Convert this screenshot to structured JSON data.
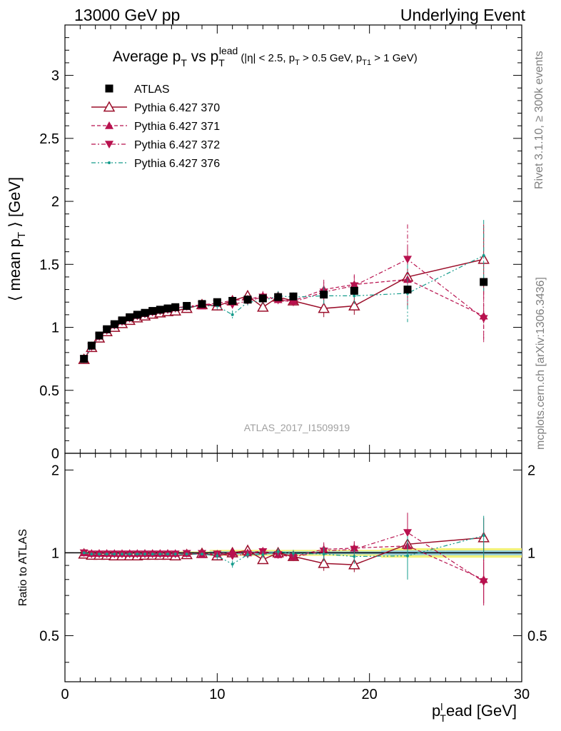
{
  "header": {
    "left": "13000 GeV pp",
    "right": "Underlying Event"
  },
  "side_labels": {
    "rivet": "Rivet 3.1.10, ≥ 300k events",
    "mcplots": "mcplots.cern.ch [arXiv:1306.3436]"
  },
  "analysis_id": "ATLAS_2017_I1509919",
  "plot_title": {
    "main": "Average p_T vs p_T^lead",
    "cuts": "(|η| < 2.5, p_T > 0.5 GeV, p_T1 > 1 GeV)"
  },
  "colors": {
    "atlas": "#000000",
    "p370": "#9b0e2a",
    "p371": "#b8114e",
    "p372": "#b8114e",
    "p376": "#169c8c",
    "band_inner": "#86c8e8",
    "band_outer": "#f2f27a"
  },
  "chart_data": [
    {
      "type": "scatter",
      "panel": "main",
      "ylabel": "⟨ mean p_T ⟩ [GeV]",
      "xlim": [
        0,
        30
      ],
      "ylim": [
        0,
        3.4
      ],
      "yticks": [
        0,
        0.5,
        1,
        1.5,
        2,
        2.5,
        3
      ],
      "x": [
        1.25,
        1.75,
        2.25,
        2.75,
        3.25,
        3.75,
        4.25,
        4.75,
        5.25,
        5.75,
        6.25,
        6.75,
        7.25,
        8,
        9,
        10,
        11,
        12,
        13,
        14,
        15,
        17,
        19,
        22.5,
        27.5
      ],
      "series": [
        {
          "name": "ATLAS",
          "marker": "square",
          "values": [
            0.75,
            0.855,
            0.935,
            0.985,
            1.025,
            1.055,
            1.08,
            1.1,
            1.115,
            1.13,
            1.14,
            1.15,
            1.16,
            1.17,
            1.185,
            1.2,
            1.21,
            1.22,
            1.23,
            1.24,
            1.245,
            1.26,
            1.29,
            1.3,
            1.36
          ]
        },
        {
          "name": "Pythia 6.427 370",
          "marker": "triangle-up-open",
          "line": "solid",
          "values": [
            0.745,
            0.84,
            0.915,
            0.965,
            1.0,
            1.03,
            1.055,
            1.075,
            1.09,
            1.105,
            1.115,
            1.125,
            1.13,
            1.15,
            1.18,
            1.17,
            1.21,
            1.25,
            1.16,
            1.24,
            1.21,
            1.15,
            1.17,
            1.4,
            1.54
          ]
        },
        {
          "name": "Pythia 6.427 371",
          "marker": "triangle-up",
          "line": "dashed",
          "values": [
            0.75,
            0.85,
            0.93,
            0.98,
            1.02,
            1.05,
            1.075,
            1.095,
            1.11,
            1.125,
            1.135,
            1.145,
            1.155,
            1.165,
            1.17,
            1.19,
            1.215,
            1.22,
            1.25,
            1.22,
            1.21,
            1.3,
            1.34,
            1.38,
            1.09
          ]
        },
        {
          "name": "Pythia 6.427 372",
          "marker": "triangle-down",
          "line": "dash-dot",
          "values": [
            0.75,
            0.845,
            0.925,
            0.975,
            1.015,
            1.045,
            1.07,
            1.09,
            1.105,
            1.12,
            1.13,
            1.14,
            1.15,
            1.165,
            1.18,
            1.19,
            1.18,
            1.21,
            1.24,
            1.22,
            1.2,
            1.28,
            1.33,
            1.54,
            1.07
          ]
        },
        {
          "name": "Pythia 6.427 376",
          "marker": "dot",
          "line": "dash-dot-dot",
          "values": [
            0.75,
            0.845,
            0.925,
            0.975,
            1.015,
            1.045,
            1.07,
            1.09,
            1.105,
            1.12,
            1.13,
            1.14,
            1.15,
            1.16,
            1.17,
            1.17,
            1.1,
            1.2,
            1.21,
            1.25,
            1.24,
            1.25,
            1.25,
            1.27,
            1.57
          ]
        }
      ]
    },
    {
      "type": "scatter",
      "panel": "ratio",
      "ylabel": "Ratio to ATLAS",
      "xlabel": "p_T^lead [GeV]",
      "xlim": [
        0,
        30
      ],
      "xticks": [
        0,
        10,
        20,
        30
      ],
      "ylim": [
        0.34,
        2.3
      ],
      "yticks": [
        0.5,
        1,
        2
      ],
      "x": [
        1.25,
        1.75,
        2.25,
        2.75,
        3.25,
        3.75,
        4.25,
        4.75,
        5.25,
        5.75,
        6.25,
        6.75,
        7.25,
        8,
        9,
        10,
        11,
        12,
        13,
        14,
        15,
        17,
        19,
        22.5,
        27.5
      ],
      "series": [
        {
          "name": "Pythia 6.427 370",
          "values": [
            0.99,
            0.98,
            0.98,
            0.98,
            0.975,
            0.975,
            0.975,
            0.975,
            0.98,
            0.98,
            0.98,
            0.98,
            0.975,
            0.985,
            0.995,
            0.975,
            1.0,
            1.02,
            0.945,
            1.0,
            0.97,
            0.915,
            0.905,
            1.075,
            1.135
          ]
        },
        {
          "name": "Pythia 6.427 371",
          "values": [
            1.0,
            0.995,
            0.995,
            0.995,
            0.995,
            0.995,
            0.995,
            0.995,
            0.995,
            0.995,
            0.995,
            0.995,
            0.995,
            0.995,
            0.985,
            0.99,
            1.005,
            1.0,
            1.015,
            0.985,
            0.97,
            1.03,
            1.04,
            1.06,
            0.8
          ]
        },
        {
          "name": "Pythia 6.427 372",
          "values": [
            1.0,
            0.99,
            0.99,
            0.99,
            0.99,
            0.99,
            0.99,
            0.99,
            0.99,
            0.99,
            0.99,
            0.99,
            0.99,
            0.995,
            0.995,
            0.99,
            0.975,
            0.99,
            1.01,
            0.985,
            0.965,
            1.015,
            1.03,
            1.185,
            0.785
          ]
        },
        {
          "name": "Pythia 6.427 376",
          "values": [
            1.0,
            0.99,
            0.99,
            0.99,
            0.99,
            0.99,
            0.99,
            0.99,
            0.99,
            0.99,
            0.99,
            0.99,
            0.99,
            0.99,
            0.99,
            0.975,
            0.91,
            0.985,
            0.985,
            1.01,
            0.995,
            0.99,
            0.97,
            0.975,
            1.155
          ]
        }
      ]
    }
  ]
}
